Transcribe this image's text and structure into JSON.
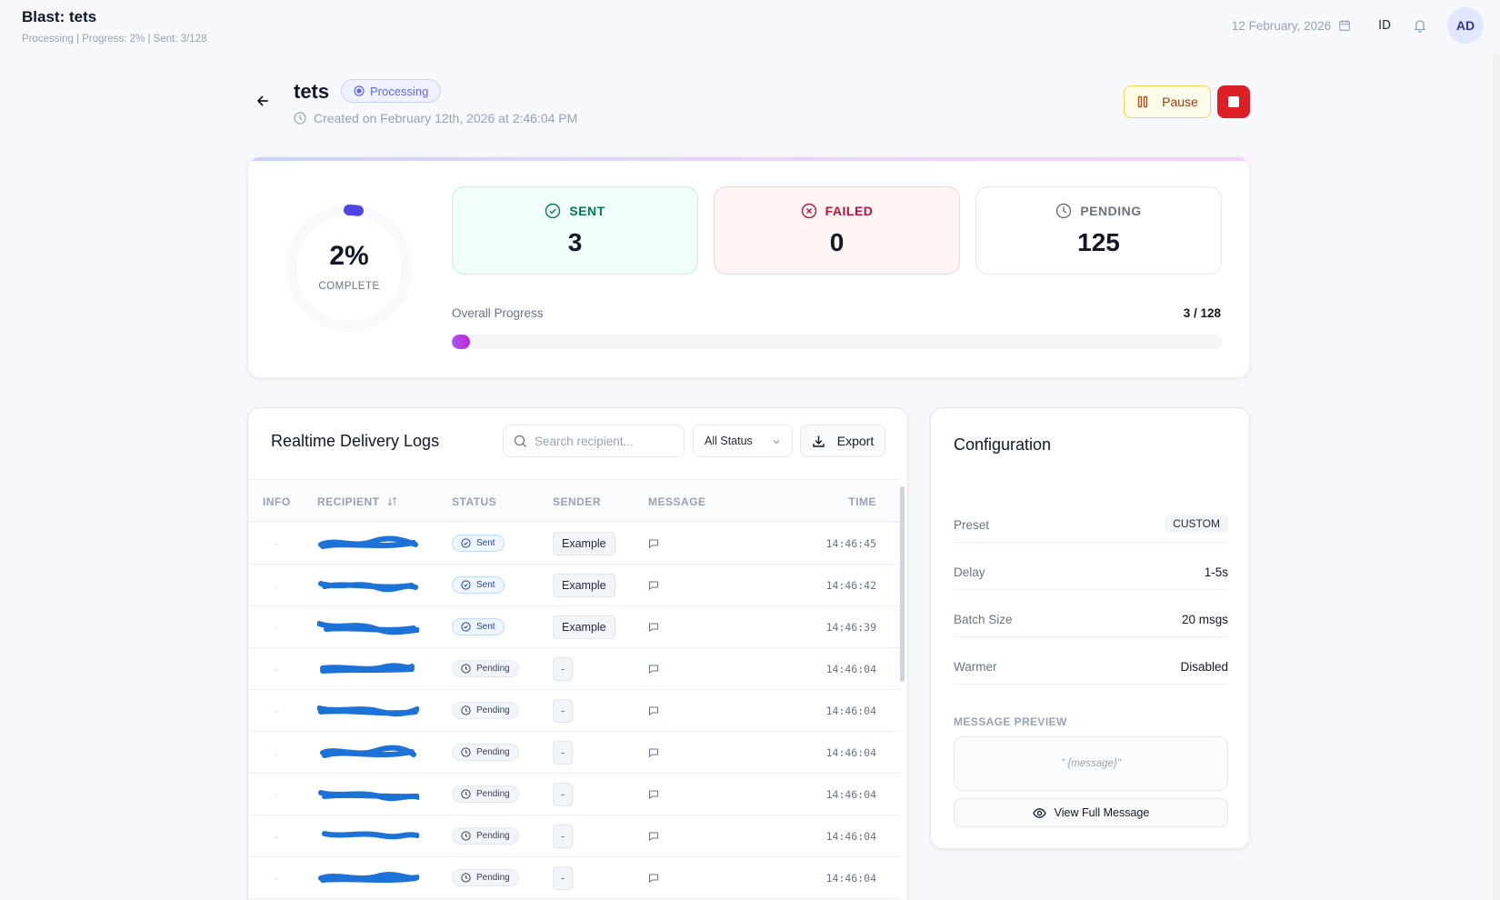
{
  "topbar": {
    "title": "Blast: tets",
    "subtitle": "Processing | Progress: 2% | Sent: 3/128",
    "date": "12 February, 2026",
    "language": "ID",
    "avatar_initials": "AD"
  },
  "blast": {
    "name": "tets",
    "status": "Processing",
    "created": "Created on February 12th, 2026 at 2:46:04 PM",
    "pause_label": "Pause"
  },
  "stats": {
    "percent_label": "2%",
    "percent_value": 0.0234,
    "complete_label": "COMPLETE",
    "sent_label": "SENT",
    "sent_value": "3",
    "failed_label": "FAILED",
    "failed_value": "0",
    "pending_label": "PENDING",
    "pending_value": "125",
    "overall_label": "Overall Progress",
    "overall_count": "3 / 128",
    "overall_fraction": 0.0234
  },
  "logs": {
    "title": "Realtime Delivery Logs",
    "search_placeholder": "Search recipient...",
    "status_filter": "All Status",
    "export_label": "Export",
    "columns": {
      "info": "INFO",
      "recipient": "RECIPIENT",
      "status": "STATUS",
      "sender": "SENDER",
      "message": "MESSAGE",
      "time": "TIME"
    },
    "rows": [
      {
        "info": "-",
        "status": "Sent",
        "sender": "Example",
        "time": "14:46:45"
      },
      {
        "info": "-",
        "status": "Sent",
        "sender": "Example",
        "time": "14:46:42"
      },
      {
        "info": "-",
        "status": "Sent",
        "sender": "Example",
        "time": "14:46:39"
      },
      {
        "info": "-",
        "status": "Pending",
        "sender": "-",
        "time": "14:46:04"
      },
      {
        "info": "-",
        "status": "Pending",
        "sender": "-",
        "time": "14:46:04"
      },
      {
        "info": "-",
        "status": "Pending",
        "sender": "-",
        "time": "14:46:04"
      },
      {
        "info": "-",
        "status": "Pending",
        "sender": "-",
        "time": "14:46:04"
      },
      {
        "info": "-",
        "status": "Pending",
        "sender": "-",
        "time": "14:46:04"
      },
      {
        "info": "-",
        "status": "Pending",
        "sender": "-",
        "time": "14:46:04"
      }
    ]
  },
  "config": {
    "title": "Configuration",
    "preset_label": "Preset",
    "preset_value": "CUSTOM",
    "delay_label": "Delay",
    "delay_value": "1-5s",
    "batch_label": "Batch Size",
    "batch_value": "20 msgs",
    "warmer_label": "Warmer",
    "warmer_value": "Disabled",
    "message_preview_label": "MESSAGE PREVIEW",
    "message_preview_text": "\" {message}\"",
    "view_full_label": "View Full Message"
  },
  "colors": {
    "accent": "#6366f1",
    "sent": "#047857",
    "failed": "#be123c",
    "stop": "#dc1f26",
    "progress": "#a855f7",
    "redaction": "#1d72d8"
  },
  "icons": {
    "back": "arrow-left-icon",
    "calendar": "calendar-icon",
    "bell": "bell-icon",
    "pause": "pause-icon",
    "stop": "stop-icon",
    "sent": "check-circle-icon",
    "failed": "x-circle-icon",
    "pending": "clock-icon",
    "search": "search-icon",
    "export": "download-icon",
    "message": "message-square-icon",
    "view": "eye-icon"
  }
}
